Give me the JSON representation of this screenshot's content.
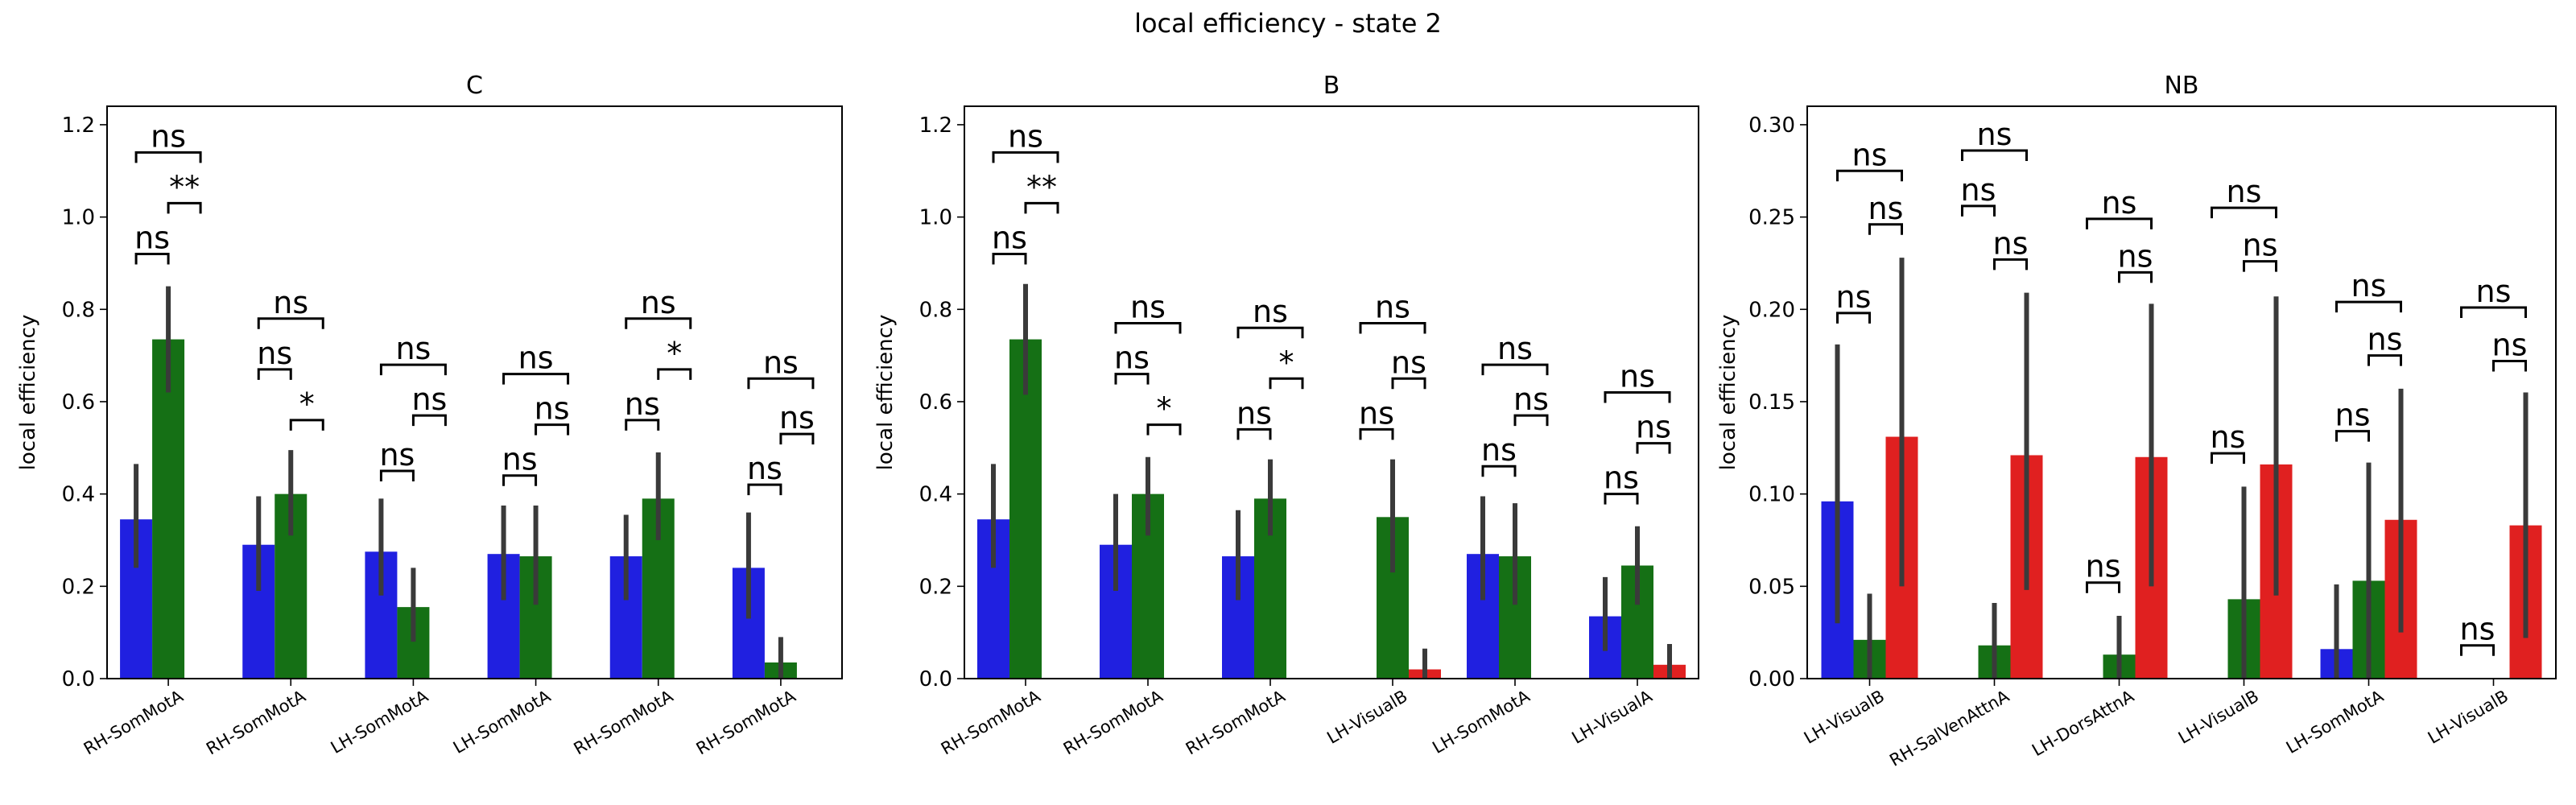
{
  "figure": {
    "suptitle": "local efficiency - state 2"
  },
  "colors": {
    "series_1": "#2020e0",
    "series_2": "#157015",
    "series_3": "#e02020",
    "error": "#3a3a3a"
  },
  "chart_data": [
    {
      "type": "bar",
      "title": "C",
      "ylabel": "local efficiency",
      "ylim": [
        0,
        1.24
      ],
      "yticks": [
        "0.0",
        "0.2",
        "0.4",
        "0.6",
        "0.8",
        "1.0",
        "1.2"
      ],
      "categories": [
        "RH-SomMotA",
        "RH-SomMotA",
        "LH-SomMotA",
        "LH-SomMotA",
        "RH-SomMotA",
        "RH-SomMotA"
      ],
      "series": [
        {
          "color": "#2020e0",
          "values": [
            0.345,
            0.29,
            0.275,
            0.27,
            0.265,
            0.24
          ],
          "err_low": [
            0.24,
            0.19,
            0.18,
            0.17,
            0.17,
            0.13
          ],
          "err_high": [
            0.465,
            0.395,
            0.39,
            0.375,
            0.355,
            0.36
          ]
        },
        {
          "color": "#157015",
          "values": [
            0.735,
            0.4,
            0.155,
            0.265,
            0.39,
            0.035
          ],
          "err_low": [
            0.62,
            0.31,
            0.08,
            0.16,
            0.3,
            0.0
          ],
          "err_high": [
            0.85,
            0.495,
            0.24,
            0.375,
            0.49,
            0.09
          ]
        },
        {
          "color": "#e02020",
          "values": [
            0,
            0,
            0,
            0,
            0,
            0
          ],
          "err_low": [
            0,
            0,
            0,
            0,
            0,
            0
          ],
          "err_high": [
            0,
            0,
            0,
            0,
            0,
            0
          ]
        }
      ],
      "annotations": [
        {
          "cat": 0,
          "a": 0,
          "b": 1,
          "y": 0.92,
          "label": "ns"
        },
        {
          "cat": 0,
          "a": 1,
          "b": 2,
          "y": 1.03,
          "label": "**"
        },
        {
          "cat": 0,
          "a": 0,
          "b": 2,
          "y": 1.14,
          "label": "ns"
        },
        {
          "cat": 1,
          "a": 0,
          "b": 1,
          "y": 0.67,
          "label": "ns"
        },
        {
          "cat": 1,
          "a": 1,
          "b": 2,
          "y": 0.56,
          "label": "*"
        },
        {
          "cat": 1,
          "a": 0,
          "b": 2,
          "y": 0.78,
          "label": "ns"
        },
        {
          "cat": 2,
          "a": 0,
          "b": 1,
          "y": 0.45,
          "label": "ns"
        },
        {
          "cat": 2,
          "a": 1,
          "b": 2,
          "y": 0.57,
          "label": "ns"
        },
        {
          "cat": 2,
          "a": 0,
          "b": 2,
          "y": 0.68,
          "label": "ns"
        },
        {
          "cat": 3,
          "a": 0,
          "b": 1,
          "y": 0.44,
          "label": "ns"
        },
        {
          "cat": 3,
          "a": 1,
          "b": 2,
          "y": 0.55,
          "label": "ns"
        },
        {
          "cat": 3,
          "a": 0,
          "b": 2,
          "y": 0.66,
          "label": "ns"
        },
        {
          "cat": 4,
          "a": 0,
          "b": 1,
          "y": 0.56,
          "label": "ns"
        },
        {
          "cat": 4,
          "a": 1,
          "b": 2,
          "y": 0.67,
          "label": "*"
        },
        {
          "cat": 4,
          "a": 0,
          "b": 2,
          "y": 0.78,
          "label": "ns"
        },
        {
          "cat": 5,
          "a": 0,
          "b": 1,
          "y": 0.42,
          "label": "ns"
        },
        {
          "cat": 5,
          "a": 1,
          "b": 2,
          "y": 0.53,
          "label": "ns"
        },
        {
          "cat": 5,
          "a": 0,
          "b": 2,
          "y": 0.65,
          "label": "ns"
        }
      ]
    },
    {
      "type": "bar",
      "title": "B",
      "ylabel": "local efficiency",
      "ylim": [
        0,
        1.24
      ],
      "yticks": [
        "0.0",
        "0.2",
        "0.4",
        "0.6",
        "0.8",
        "1.0",
        "1.2"
      ],
      "categories": [
        "RH-SomMotA",
        "RH-SomMotA",
        "RH-SomMotA",
        "LH-VisualB",
        "LH-SomMotA",
        "LH-VisualA"
      ],
      "series": [
        {
          "color": "#2020e0",
          "values": [
            0.345,
            0.29,
            0.265,
            0,
            0.27,
            0.135
          ],
          "err_low": [
            0.24,
            0.19,
            0.17,
            0,
            0.17,
            0.06
          ],
          "err_high": [
            0.465,
            0.4,
            0.365,
            0,
            0.395,
            0.22
          ]
        },
        {
          "color": "#157015",
          "values": [
            0.735,
            0.4,
            0.39,
            0.35,
            0.265,
            0.245
          ],
          "err_low": [
            0.615,
            0.31,
            0.31,
            0.23,
            0.16,
            0.16
          ],
          "err_high": [
            0.855,
            0.48,
            0.475,
            0.475,
            0.38,
            0.33
          ]
        },
        {
          "color": "#e02020",
          "values": [
            0,
            0,
            0,
            0.02,
            0,
            0.03
          ],
          "err_low": [
            0,
            0,
            0,
            0.0,
            0,
            0.0
          ],
          "err_high": [
            0,
            0,
            0,
            0.065,
            0,
            0.075
          ]
        }
      ],
      "annotations": [
        {
          "cat": 0,
          "a": 0,
          "b": 1,
          "y": 0.92,
          "label": "ns"
        },
        {
          "cat": 0,
          "a": 1,
          "b": 2,
          "y": 1.03,
          "label": "**"
        },
        {
          "cat": 0,
          "a": 0,
          "b": 2,
          "y": 1.14,
          "label": "ns"
        },
        {
          "cat": 1,
          "a": 0,
          "b": 1,
          "y": 0.66,
          "label": "ns"
        },
        {
          "cat": 1,
          "a": 1,
          "b": 2,
          "y": 0.55,
          "label": "*"
        },
        {
          "cat": 1,
          "a": 0,
          "b": 2,
          "y": 0.77,
          "label": "ns"
        },
        {
          "cat": 2,
          "a": 0,
          "b": 1,
          "y": 0.54,
          "label": "ns"
        },
        {
          "cat": 2,
          "a": 1,
          "b": 2,
          "y": 0.65,
          "label": "*"
        },
        {
          "cat": 2,
          "a": 0,
          "b": 2,
          "y": 0.76,
          "label": "ns"
        },
        {
          "cat": 3,
          "a": 0,
          "b": 1,
          "y": 0.54,
          "label": "ns"
        },
        {
          "cat": 3,
          "a": 1,
          "b": 2,
          "y": 0.65,
          "label": "ns"
        },
        {
          "cat": 3,
          "a": 0,
          "b": 2,
          "y": 0.77,
          "label": "ns"
        },
        {
          "cat": 4,
          "a": 0,
          "b": 1,
          "y": 0.46,
          "label": "ns"
        },
        {
          "cat": 4,
          "a": 1,
          "b": 2,
          "y": 0.57,
          "label": "ns"
        },
        {
          "cat": 4,
          "a": 0,
          "b": 2,
          "y": 0.68,
          "label": "ns"
        },
        {
          "cat": 5,
          "a": 0,
          "b": 1,
          "y": 0.4,
          "label": "ns"
        },
        {
          "cat": 5,
          "a": 1,
          "b": 2,
          "y": 0.51,
          "label": "ns"
        },
        {
          "cat": 5,
          "a": 0,
          "b": 2,
          "y": 0.62,
          "label": "ns"
        }
      ]
    },
    {
      "type": "bar",
      "title": "NB",
      "ylabel": "local efficiency",
      "ylim": [
        0,
        0.31
      ],
      "yticks": [
        "0.00",
        "0.05",
        "0.10",
        "0.15",
        "0.20",
        "0.25",
        "0.30"
      ],
      "categories": [
        "LH-VisualB",
        "RH-SalVenAttnA",
        "LH-DorsAttnA",
        "LH-VisualB",
        "LH-SomMotA",
        "LH-VisualB"
      ],
      "series": [
        {
          "color": "#2020e0",
          "values": [
            0.096,
            0,
            0,
            0,
            0.016,
            0
          ],
          "err_low": [
            0.03,
            0,
            0,
            0,
            0.0,
            0
          ],
          "err_high": [
            0.181,
            0,
            0,
            0,
            0.051,
            0
          ]
        },
        {
          "color": "#157015",
          "values": [
            0.021,
            0.018,
            0.013,
            0.043,
            0.053,
            0
          ],
          "err_low": [
            0.0,
            0.0,
            0.0,
            0.0,
            0.0,
            0
          ],
          "err_high": [
            0.046,
            0.041,
            0.034,
            0.104,
            0.117,
            0
          ]
        },
        {
          "color": "#e02020",
          "values": [
            0.131,
            0.121,
            0.12,
            0.116,
            0.086,
            0.083
          ],
          "err_low": [
            0.05,
            0.048,
            0.05,
            0.045,
            0.025,
            0.022
          ],
          "err_high": [
            0.228,
            0.209,
            0.203,
            0.207,
            0.157,
            0.155
          ]
        }
      ],
      "annotations": [
        {
          "cat": 0,
          "a": 0,
          "b": 1,
          "y": 0.198,
          "label": "ns"
        },
        {
          "cat": 0,
          "a": 1,
          "b": 2,
          "y": 0.246,
          "label": "ns"
        },
        {
          "cat": 0,
          "a": 0,
          "b": 2,
          "y": 0.275,
          "label": "ns"
        },
        {
          "cat": 1,
          "a": 0,
          "b": 1,
          "y": 0.256,
          "label": "ns"
        },
        {
          "cat": 1,
          "a": 1,
          "b": 2,
          "y": 0.227,
          "label": "ns"
        },
        {
          "cat": 1,
          "a": 0,
          "b": 2,
          "y": 0.286,
          "label": "ns"
        },
        {
          "cat": 2,
          "a": 0,
          "b": 1,
          "y": 0.052,
          "label": "ns"
        },
        {
          "cat": 2,
          "a": 1,
          "b": 2,
          "y": 0.22,
          "label": "ns"
        },
        {
          "cat": 2,
          "a": 0,
          "b": 2,
          "y": 0.249,
          "label": "ns"
        },
        {
          "cat": 3,
          "a": 0,
          "b": 1,
          "y": 0.122,
          "label": "ns"
        },
        {
          "cat": 3,
          "a": 1,
          "b": 2,
          "y": 0.226,
          "label": "ns"
        },
        {
          "cat": 3,
          "a": 0,
          "b": 2,
          "y": 0.255,
          "label": "ns"
        },
        {
          "cat": 4,
          "a": 0,
          "b": 1,
          "y": 0.134,
          "label": "ns"
        },
        {
          "cat": 4,
          "a": 1,
          "b": 2,
          "y": 0.175,
          "label": "ns"
        },
        {
          "cat": 4,
          "a": 0,
          "b": 2,
          "y": 0.204,
          "label": "ns"
        },
        {
          "cat": 5,
          "a": 0,
          "b": 1,
          "y": 0.018,
          "label": "ns"
        },
        {
          "cat": 5,
          "a": 1,
          "b": 2,
          "y": 0.172,
          "label": "ns"
        },
        {
          "cat": 5,
          "a": 0,
          "b": 2,
          "y": 0.201,
          "label": "ns"
        }
      ]
    }
  ]
}
